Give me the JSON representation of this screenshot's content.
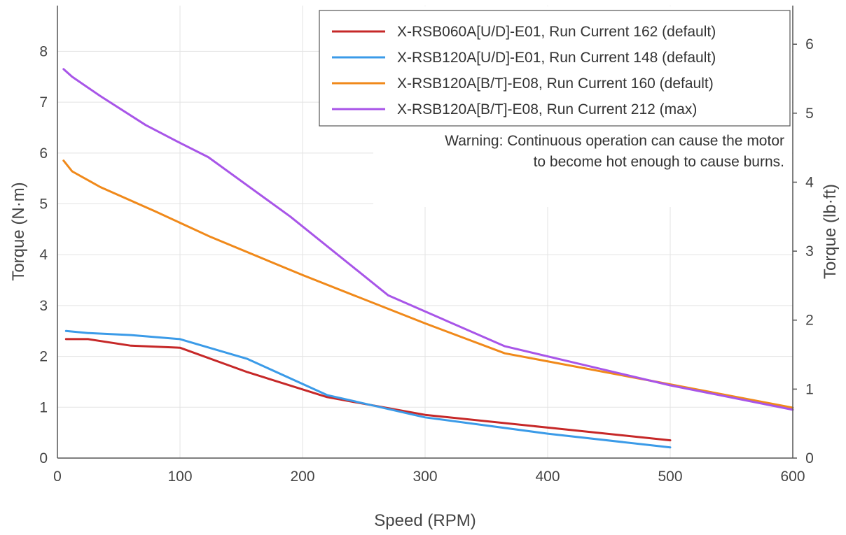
{
  "chart_data": {
    "type": "line",
    "xlabel": "Speed (RPM)",
    "ylabel": "Torque (N·m)",
    "ylabel_right": "Torque (lb·ft)",
    "xlim": [
      0,
      600
    ],
    "ylim": [
      0,
      8.9
    ],
    "ylim_right_lbft": [
      0,
      6.56
    ],
    "x_ticks": [
      0,
      100,
      200,
      300,
      400,
      500,
      600
    ],
    "y_ticks": [
      0,
      1,
      2,
      3,
      4,
      5,
      6,
      7,
      8
    ],
    "y_ticks_right": [
      0,
      1,
      2,
      3,
      4,
      5,
      6
    ],
    "grid": true,
    "legend_position": "top-right",
    "annotation_lines": [
      "Warning: Continuous operation can cause the motor",
      "to become hot enough to cause burns."
    ],
    "series": [
      {
        "name": "X-RSB060A[U/D]-E01, Run Current 162 (default)",
        "color": "#c62828",
        "x": [
          7,
          25,
          60,
          100,
          155,
          220,
          300,
          400,
          500
        ],
        "y": [
          2.34,
          2.34,
          2.21,
          2.17,
          1.69,
          1.2,
          0.85,
          0.6,
          0.35
        ]
      },
      {
        "name": "X-RSB120A[U/D]-E01, Run Current 148 (default)",
        "color": "#3b9be8",
        "x": [
          7,
          25,
          60,
          100,
          155,
          220,
          300,
          400,
          500
        ],
        "y": [
          2.5,
          2.46,
          2.42,
          2.34,
          1.95,
          1.24,
          0.8,
          0.48,
          0.21
        ]
      },
      {
        "name": "X-RSB120A[B/T]-E08, Run Current 160 (default)",
        "color": "#f0891a",
        "x": [
          5,
          12,
          35,
          80,
          125,
          200,
          300,
          365,
          500,
          600
        ],
        "y": [
          5.85,
          5.64,
          5.33,
          4.85,
          4.35,
          3.6,
          2.65,
          2.06,
          1.45,
          0.99
        ]
      },
      {
        "name": "X-RSB120A[B/T]-E08, Run Current 212 (max)",
        "color": "#a855e8",
        "x": [
          5,
          12,
          35,
          72,
          100,
          123,
          190,
          270,
          365,
          500,
          600
        ],
        "y": [
          7.65,
          7.5,
          7.12,
          6.55,
          6.2,
          5.92,
          4.75,
          3.2,
          2.2,
          1.43,
          0.95
        ]
      }
    ]
  }
}
